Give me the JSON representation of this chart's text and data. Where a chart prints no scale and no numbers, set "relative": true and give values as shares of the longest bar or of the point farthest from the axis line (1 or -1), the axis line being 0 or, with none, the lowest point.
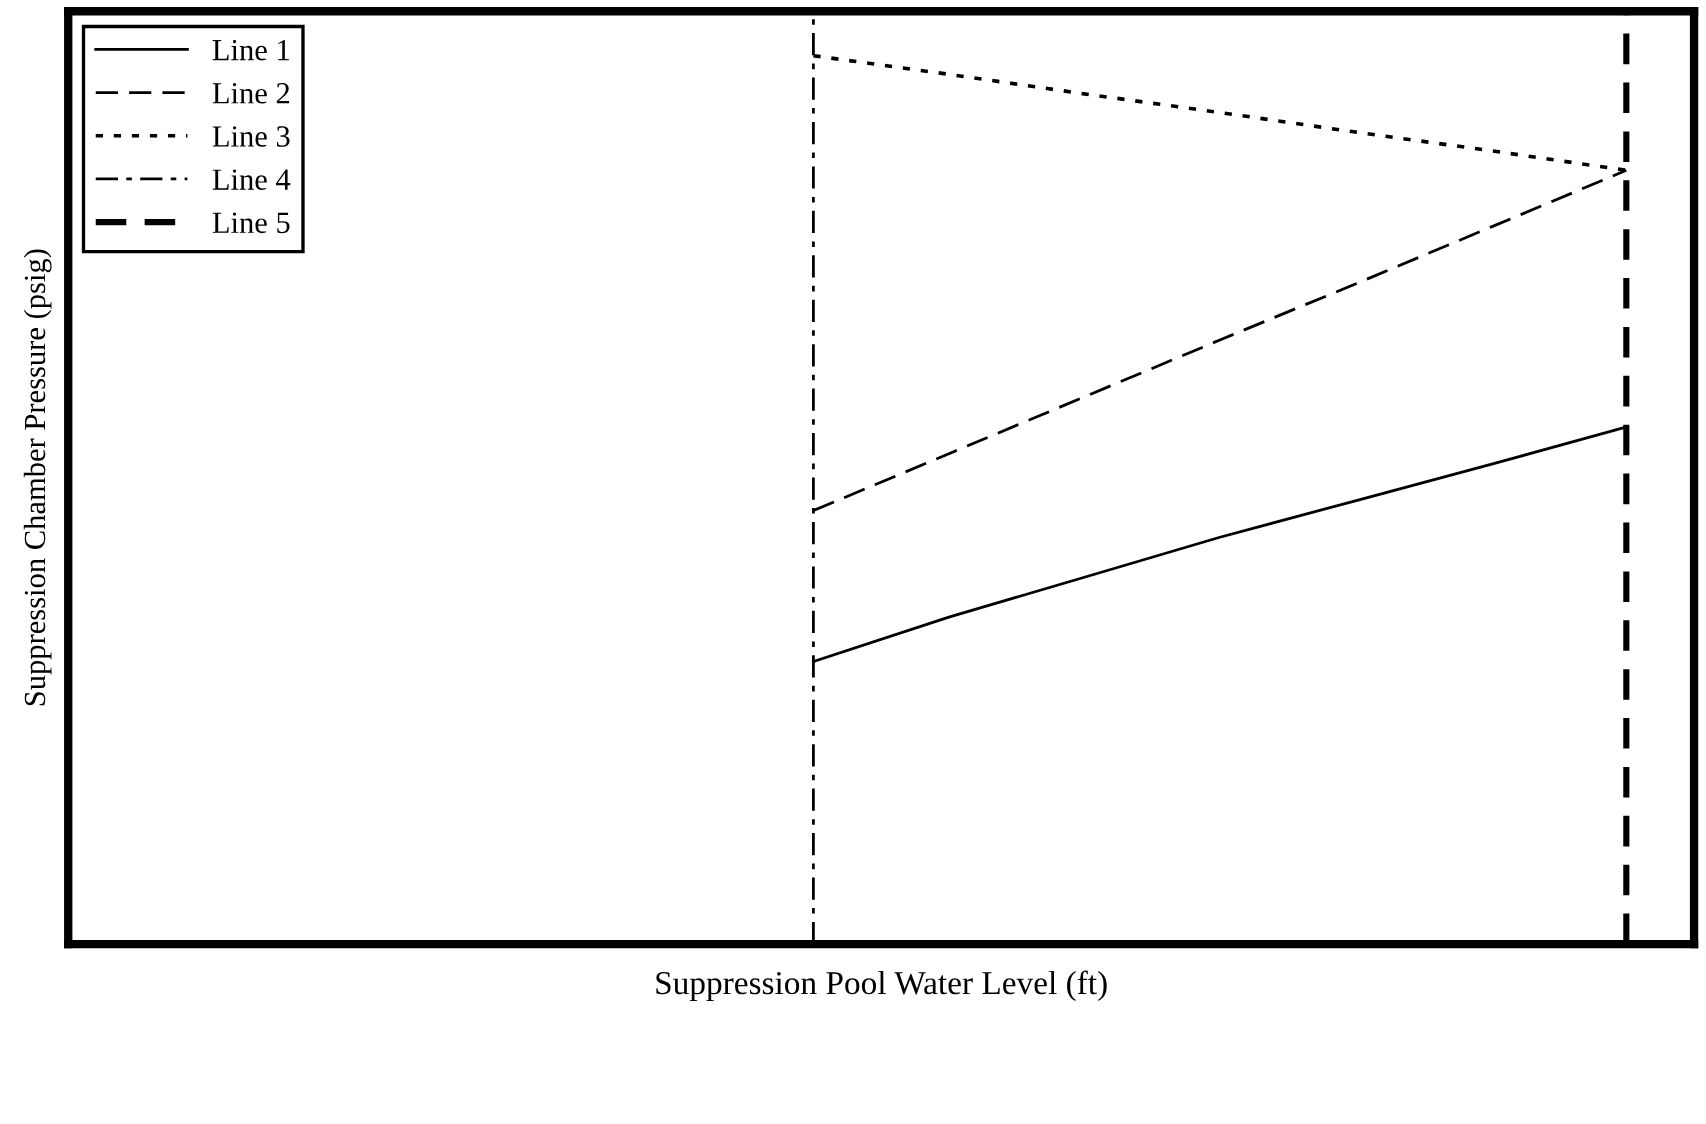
{
  "chart_data": {
    "type": "line",
    "relative": true,
    "xlabel": "Suppression Pool Water Level (ft)",
    "ylabel": "Suppression Chamber Pressure (psig)",
    "legend": "top left",
    "marker": "none",
    "categories": [
      null,
      null,
      null,
      null,
      null,
      null,
      null,
      null,
      null,
      null,
      null,
      null
    ],
    "series": [
      {
        "name": "Line 1",
        "color": "#000000",
        "line_style": "solid",
        "values": [
          null,
          null,
          null,
          null,
          null,
          0.318,
          0.368,
          0.413,
          0.458,
          0.499,
          0.54,
          0.582
        ]
      },
      {
        "name": "Line 2",
        "color": "#000000",
        "line_style": "dashed",
        "values": [
          null,
          null,
          null,
          null,
          null,
          0.488,
          0.552,
          0.616,
          0.68,
          0.743,
          0.807,
          0.871
        ]
      },
      {
        "name": "Line 3",
        "color": "#000000",
        "line_style": "dotted",
        "values": [
          null,
          null,
          null,
          null,
          null,
          1,
          0.979,
          0.957,
          0.936,
          0.914,
          0.893,
          0.871
        ]
      },
      {
        "name": "Line 4",
        "color": "#000000",
        "line_style": "dashdot",
        "values": [
          null,
          null,
          null,
          null,
          null,
          null,
          null,
          null,
          null,
          null,
          null,
          null
        ]
      },
      {
        "name": "Line 5",
        "color": "#000000",
        "line_style": "heavydashed",
        "values": [
          null,
          null,
          null,
          null,
          null,
          null,
          null,
          null,
          null,
          null,
          null,
          null
        ]
      }
    ]
  }
}
